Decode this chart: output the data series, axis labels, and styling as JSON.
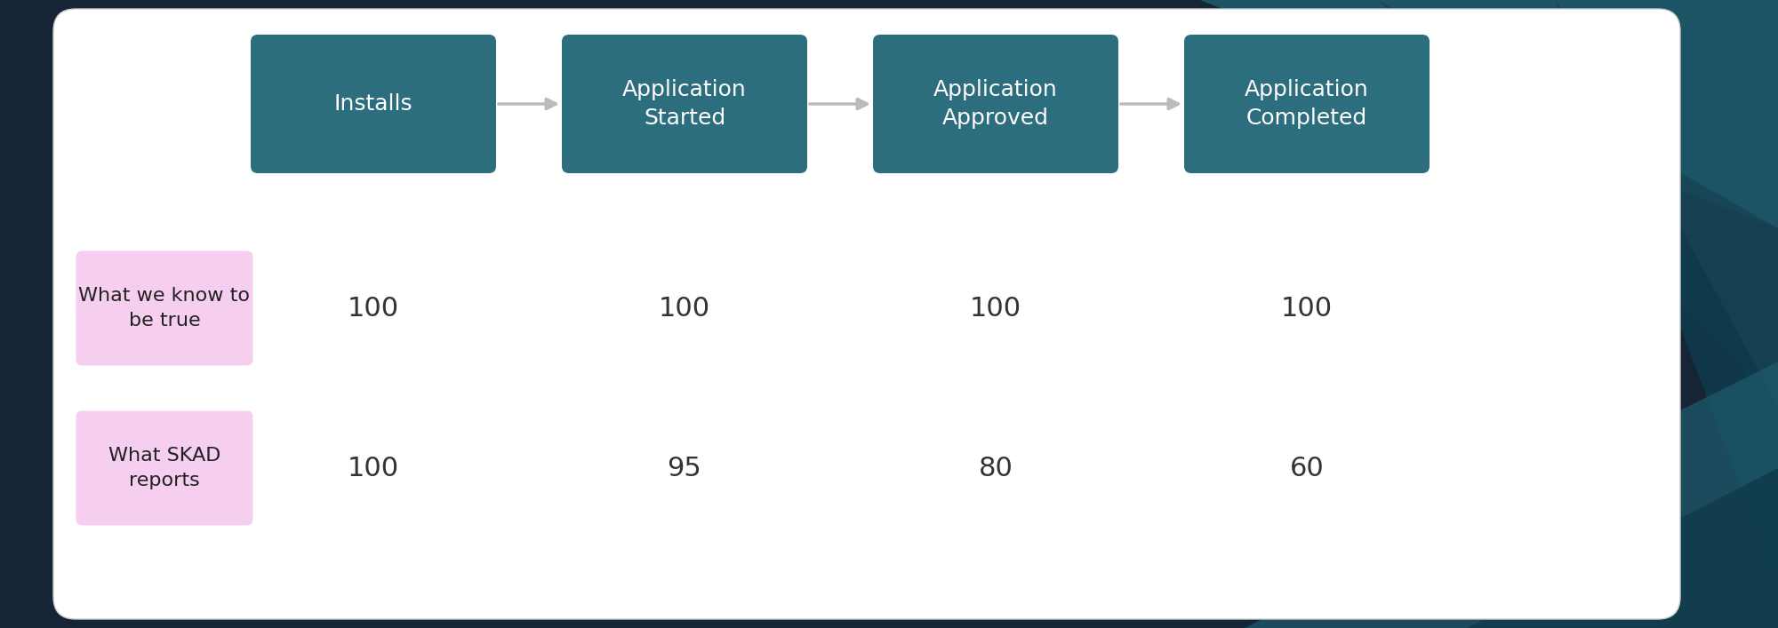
{
  "background_outer": "#152535",
  "background_inner": "#ffffff",
  "header_box_color": "#2d6e7e",
  "row_label_color": "#f5cef0",
  "header_labels": [
    "Installs",
    "Application\nStarted",
    "Application\nApproved",
    "Application\nCompleted"
  ],
  "row_labels": [
    "What we know to\nbe true",
    "What SKAD\nreports"
  ],
  "row1_values": [
    "100",
    "100",
    "100",
    "100"
  ],
  "row2_values": [
    "100",
    "95",
    "80",
    "60"
  ],
  "header_text_color": "#ffffff",
  "row_label_text_color": "#222222",
  "value_text_color": "#333333",
  "arrow_color": "#bbbbbb",
  "header_font_size": 18,
  "row_label_font_size": 16,
  "value_font_size": 22
}
